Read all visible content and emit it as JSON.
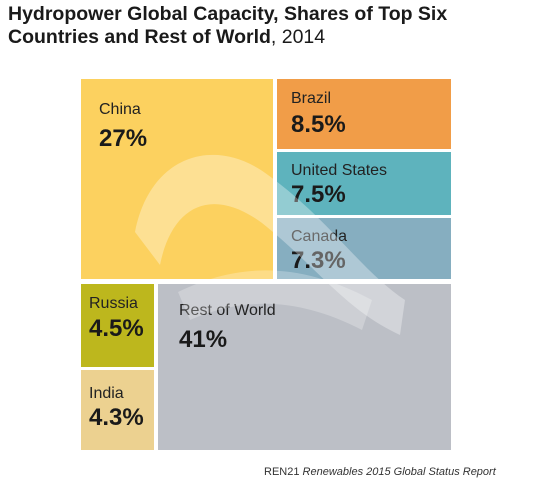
{
  "title": {
    "bold_part": "Hydropower Global Capacity, Shares of Top Six Countries and Rest of World",
    "regular_part": ", 2014"
  },
  "chart_data": {
    "type": "treemap",
    "title": "Hydropower Global Capacity, Shares of Top Six Countries and Rest of World, 2014",
    "unit": "%",
    "categories": [
      "China",
      "Brazil",
      "United States",
      "Canada",
      "Russia",
      "India",
      "Rest of World"
    ],
    "values": [
      27,
      8.5,
      7.5,
      7.3,
      4.5,
      4.3,
      41
    ],
    "labels": [
      "27%",
      "8.5%",
      "7.5%",
      "7.3%",
      "4.5%",
      "4.3%",
      "41%"
    ],
    "colors": [
      "#fcd15f",
      "#f19d48",
      "#5eb3bd",
      "#86aec0",
      "#bdb71d",
      "#ecd190",
      "#bcbfc6"
    ]
  },
  "source": {
    "org": "REN21",
    "report": "Renewables 2015 Global Status Report"
  }
}
